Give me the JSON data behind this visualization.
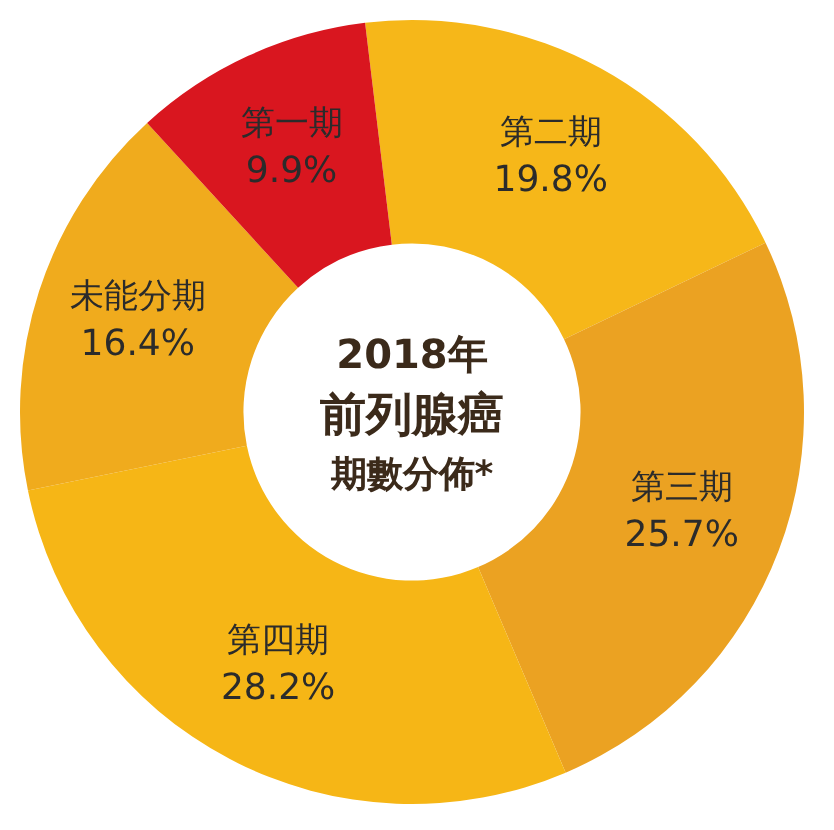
{
  "chart_data": {
    "type": "donut",
    "title": "2018年",
    "subtitle": "前列腺癌",
    "annotations": [
      "期數分佈*"
    ],
    "categories": [
      "第二期",
      "第三期",
      "第四期",
      "未能分期",
      "第一期"
    ],
    "values": [
      19.8,
      25.7,
      28.2,
      16.4,
      9.9
    ],
    "colors": [
      "#f6b719",
      "#eba222",
      "#f6b616",
      "#f0ab1d",
      "#d9161f"
    ],
    "value_labels": [
      "19.8%",
      "25.7%",
      "28.2%",
      "16.4%",
      "9.9%"
    ],
    "legend": false
  }
}
